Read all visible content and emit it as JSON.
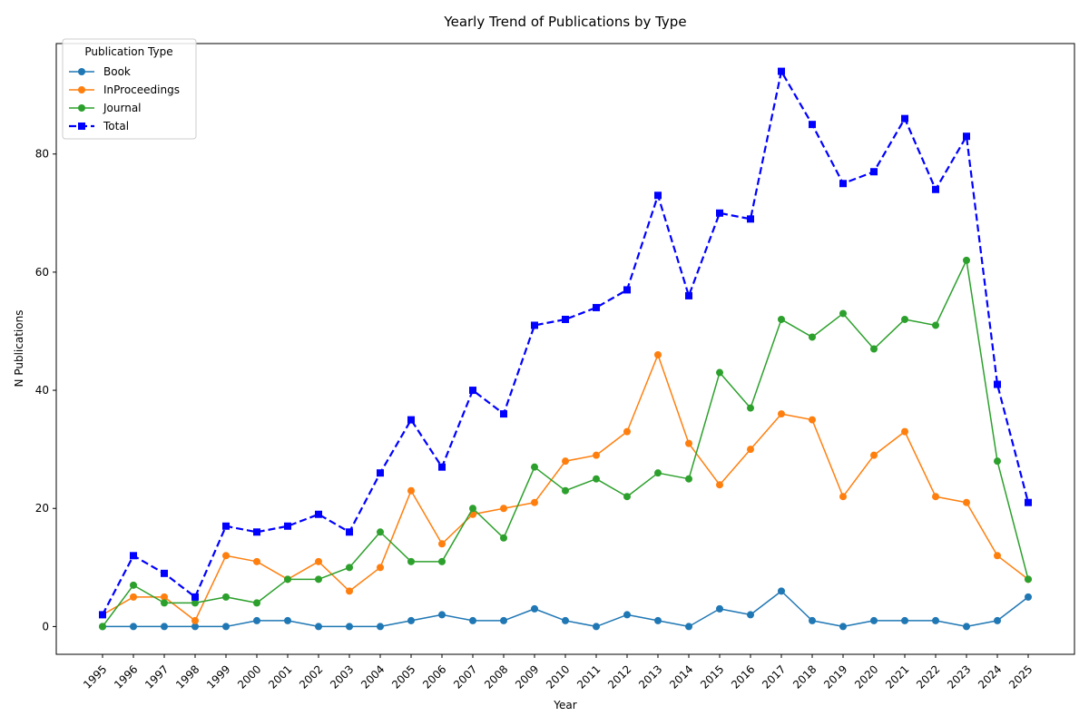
{
  "chart_data": {
    "type": "line",
    "title": "Yearly Trend of Publications by Type",
    "xlabel": "Year",
    "ylabel": "N Publications",
    "legend_title": "Publication Type",
    "legend_position": "top-left",
    "grid": false,
    "x": [
      "1995",
      "1996",
      "1997",
      "1998",
      "1999",
      "2000",
      "2001",
      "2002",
      "2003",
      "2004",
      "2005",
      "2006",
      "2007",
      "2008",
      "2009",
      "2010",
      "2011",
      "2012",
      "2013",
      "2014",
      "2015",
      "2016",
      "2017",
      "2018",
      "2019",
      "2020",
      "2021",
      "2022",
      "2023",
      "2024",
      "2025"
    ],
    "ylim": [
      -4.7,
      98.7
    ],
    "yticks": [
      "0",
      "20",
      "40",
      "60",
      "80"
    ],
    "series": [
      {
        "name": "Book",
        "color": "#1f77b4",
        "marker": "circle",
        "style": "solid",
        "values": [
          0,
          0,
          0,
          0,
          0,
          1,
          1,
          0,
          0,
          0,
          1,
          2,
          1,
          1,
          3,
          1,
          0,
          2,
          1,
          0,
          3,
          2,
          6,
          1,
          0,
          1,
          1,
          1,
          0,
          1,
          5
        ]
      },
      {
        "name": "InProceedings",
        "color": "#ff7f0e",
        "marker": "circle",
        "style": "solid",
        "values": [
          2,
          5,
          5,
          1,
          12,
          11,
          8,
          11,
          6,
          10,
          23,
          14,
          19,
          20,
          21,
          28,
          29,
          33,
          46,
          31,
          24,
          30,
          36,
          35,
          22,
          29,
          33,
          22,
          21,
          12,
          8
        ]
      },
      {
        "name": "Journal",
        "color": "#2ca02c",
        "marker": "circle",
        "style": "solid",
        "values": [
          0,
          7,
          4,
          4,
          5,
          4,
          8,
          8,
          10,
          16,
          11,
          11,
          20,
          15,
          27,
          23,
          25,
          22,
          26,
          25,
          43,
          37,
          52,
          49,
          53,
          47,
          52,
          51,
          62,
          28,
          8
        ]
      },
      {
        "name": "Total",
        "color": "#0000ff",
        "marker": "square",
        "style": "dashed",
        "values": [
          2,
          12,
          9,
          5,
          17,
          16,
          17,
          19,
          16,
          26,
          35,
          27,
          40,
          36,
          51,
          52,
          54,
          57,
          73,
          56,
          70,
          69,
          94,
          85,
          75,
          77,
          86,
          74,
          83,
          41,
          21
        ]
      }
    ]
  }
}
